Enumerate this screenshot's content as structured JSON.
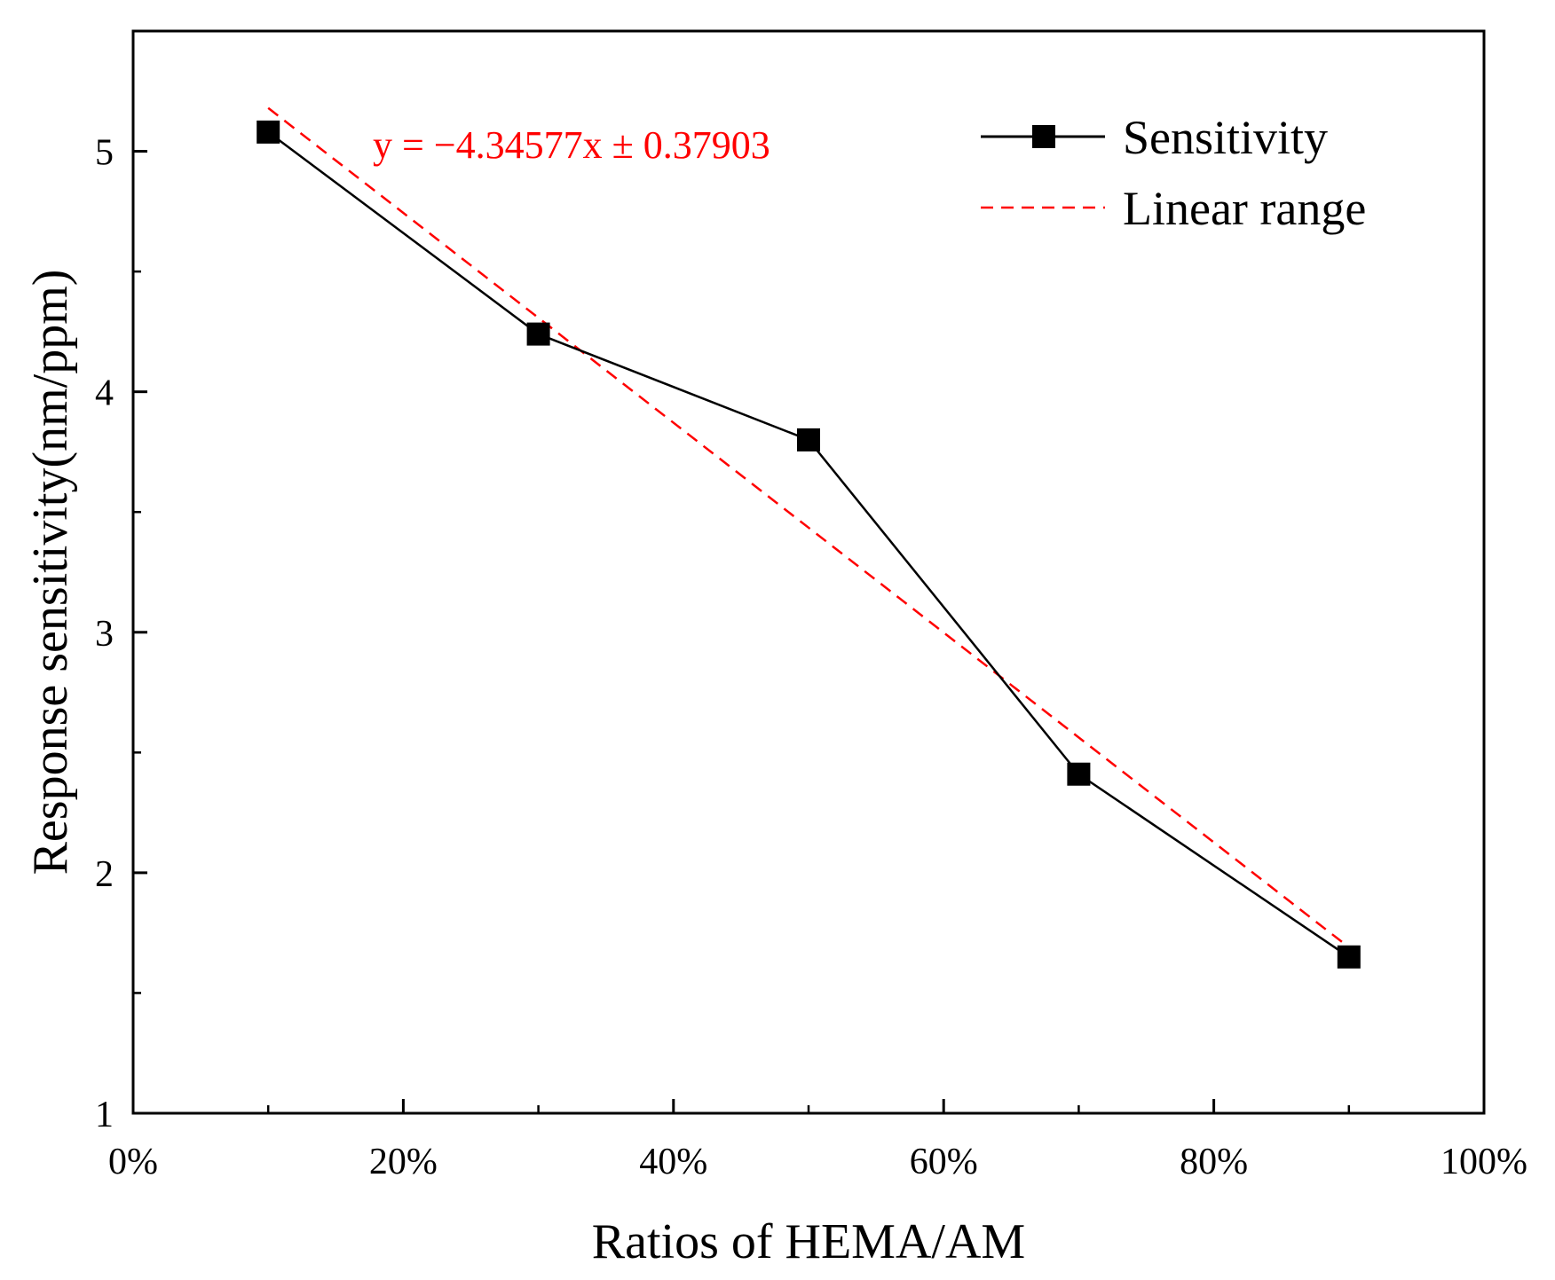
{
  "chart_data": {
    "type": "line",
    "title": "",
    "xlabel": "Ratios of HEMA/AM",
    "ylabel": "Response sensitivity(nm/ppm)",
    "xlim": [
      0,
      1
    ],
    "ylim": [
      1,
      5.5
    ],
    "x_ticks": [
      0,
      0.2,
      0.4,
      0.6,
      0.8,
      1.0
    ],
    "x_tick_labels": [
      "0%",
      "20%",
      "40%",
      "60%",
      "80%",
      "100%"
    ],
    "y_ticks": [
      1,
      2,
      3,
      4,
      5
    ],
    "y_tick_labels": [
      "1",
      "2",
      "3",
      "4",
      "5"
    ],
    "y_minor_ticks": [
      1.5,
      2.5,
      3.5,
      4.5
    ],
    "x_minor_ticks": [
      0.1,
      0.3,
      0.5,
      0.7,
      0.9
    ],
    "grid": false,
    "legend_position": "top-right",
    "series": [
      {
        "name": "Sensitivity",
        "style": "solid-line-square-markers",
        "color": "#000000",
        "x": [
          0.1,
          0.3,
          0.5,
          0.7,
          0.9
        ],
        "y": [
          5.08,
          4.24,
          3.8,
          2.41,
          1.65
        ]
      },
      {
        "name": "Linear range",
        "style": "dashed-line",
        "color": "#ff0000",
        "x": [
          0.1,
          0.9
        ],
        "y": [
          5.18,
          1.69
        ]
      }
    ],
    "annotation": {
      "text": "y = −4.34577x ± 0.37903",
      "color": "#ff0000"
    }
  }
}
